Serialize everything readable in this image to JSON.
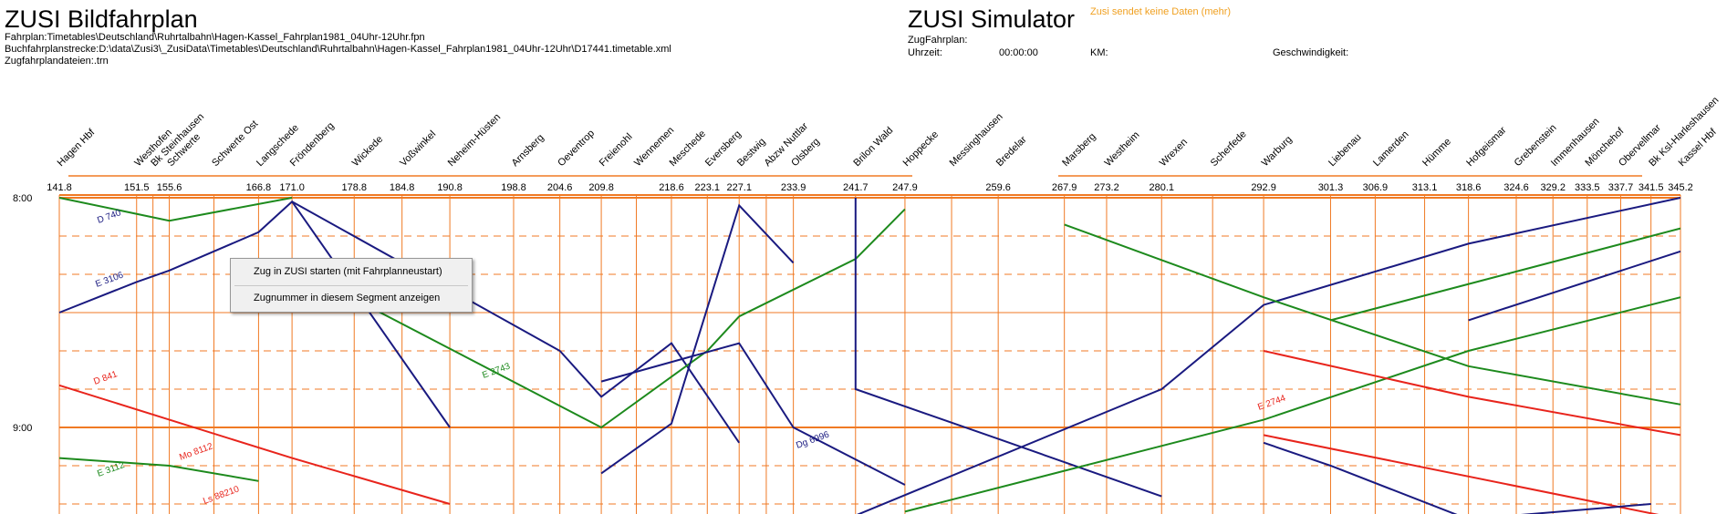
{
  "header": {
    "title": "ZUSI Bildfahrplan",
    "fahrplan_line": "Fahrplan:Timetables\\Deutschland\\Ruhrtalbahn\\Hagen-Kassel_Fahrplan1981_04Uhr-12Uhr.fpn",
    "buchfahrplan_line": "Buchfahrplanstrecke:D:\\data\\Zusi3\\_ZusiData\\Timetables\\Deutschland\\Ruhrtalbahn\\Hagen-Kassel_Fahrplan1981_04Uhr-12Uhr\\D17441.timetable.xml",
    "zugfahrplan_line": "Zugfahrplandateien:.trn"
  },
  "simulator": {
    "title": "ZUSI Simulator",
    "status": "Zusi sendet keine Daten (mehr)",
    "zugfahrplan_label": "ZugFahrplan:",
    "uhrzeit_label": "Uhrzeit:",
    "uhrzeit_value": "00:00:00",
    "km_label": "KM:",
    "geschwindigkeit_label": "Geschwindigkeit:"
  },
  "context_menu": {
    "item1": "Zug in ZUSI starten (mit Fahrplanneustart)",
    "item2": "Zugnummer in diesem Segment anzeigen"
  },
  "colors": {
    "grid_orange": "#f07a24",
    "train_blue": "#1a1a80",
    "train_green": "#1d8a1d",
    "train_red": "#e8241c",
    "status_orange": "#f0a020"
  },
  "chart_data": {
    "type": "line",
    "time_labels": [
      {
        "label": "8:00",
        "minutes": 0
      },
      {
        "label": "9:00",
        "minutes": 60
      }
    ],
    "stations": [
      {
        "name": "Hagen Hbf",
        "km": "141.8"
      },
      {
        "name": "Westhofen",
        "km": "151.5"
      },
      {
        "name": "Bk Steinhausen",
        "km": ""
      },
      {
        "name": "Schwerte",
        "km": "155.6"
      },
      {
        "name": "Schwerte Ost",
        "km": ""
      },
      {
        "name": "Langschede",
        "km": "166.8"
      },
      {
        "name": "Fröndenberg",
        "km": "171.0"
      },
      {
        "name": "Wickede",
        "km": "178.8"
      },
      {
        "name": "Voßwinkel",
        "km": "184.8"
      },
      {
        "name": "Neheim-Hüsten",
        "km": "190.8"
      },
      {
        "name": "Arnsberg",
        "km": "198.8"
      },
      {
        "name": "Oeventrop",
        "km": "204.6"
      },
      {
        "name": "Freienohl",
        "km": "209.8"
      },
      {
        "name": "Wennemen",
        "km": ""
      },
      {
        "name": "Meschede",
        "km": "218.6"
      },
      {
        "name": "Eversberg",
        "km": "223.1"
      },
      {
        "name": "Bestwig",
        "km": "227.1"
      },
      {
        "name": "Abzw Nuttlar",
        "km": ""
      },
      {
        "name": "Olsberg",
        "km": "233.9"
      },
      {
        "name": "Brilon Wald",
        "km": "241.7"
      },
      {
        "name": "Hoppecke",
        "km": "247.9"
      },
      {
        "name": "Messinghausen",
        "km": ""
      },
      {
        "name": "Bredelar",
        "km": "259.6"
      },
      {
        "name": "Marsberg",
        "km": "267.9"
      },
      {
        "name": "Westheim",
        "km": "273.2"
      },
      {
        "name": "Wrexen",
        "km": "280.1"
      },
      {
        "name": "Scherfede",
        "km": ""
      },
      {
        "name": "Warburg",
        "km": "292.9"
      },
      {
        "name": "Liebenau",
        "km": "301.3"
      },
      {
        "name": "Lamerden",
        "km": "306.9"
      },
      {
        "name": "Hümme",
        "km": "313.1"
      },
      {
        "name": "Hofgeismar",
        "km": "318.6"
      },
      {
        "name": "Grebenstein",
        "km": "324.6"
      },
      {
        "name": "Immenhausen",
        "km": "329.2"
      },
      {
        "name": "Mönchehof",
        "km": "333.5"
      },
      {
        "name": "Obervellmar",
        "km": "337.7"
      },
      {
        "name": "Bk Ksl-Harleshausen",
        "km": "341.5"
      },
      {
        "name": "Kassel Hbf",
        "km": "345.2"
      }
    ],
    "train_labels": [
      {
        "text": "D 740",
        "color": "blue"
      },
      {
        "text": "E 3106",
        "color": "blue"
      },
      {
        "text": "D 841",
        "color": "red"
      },
      {
        "text": "E 3112",
        "color": "green"
      },
      {
        "text": "Mo 8112",
        "color": "red"
      },
      {
        "text": "Ls 88210",
        "color": "red"
      },
      {
        "text": "E 2743",
        "color": "green"
      },
      {
        "text": "E 2744",
        "color": "red"
      },
      {
        "text": "Dg 6996",
        "color": "blue"
      }
    ],
    "series": [
      {
        "color": "blue",
        "points": [
          [
            141.8,
            30
          ],
          [
            151.5,
            22
          ],
          [
            155.6,
            19
          ],
          [
            166.8,
            9
          ],
          [
            171.0,
            1
          ],
          [
            190.8,
            60
          ]
        ]
      },
      {
        "color": "blue",
        "points": [
          [
            171.0,
            1
          ],
          [
            204.6,
            40
          ],
          [
            209.8,
            52
          ],
          [
            218.6,
            38
          ],
          [
            227.1,
            64
          ]
        ]
      },
      {
        "color": "green",
        "points": [
          [
            141.8,
            0
          ],
          [
            155.6,
            6
          ],
          [
            171.0,
            0
          ]
        ]
      },
      {
        "color": "green",
        "points": [
          [
            171.0,
            18
          ],
          [
            209.8,
            60
          ],
          [
            223.1,
            40
          ],
          [
            227.1,
            31
          ]
        ]
      },
      {
        "color": "blue",
        "points": [
          [
            209.8,
            72
          ],
          [
            218.6,
            59
          ],
          [
            227.1,
            2
          ],
          [
            233.9,
            17
          ]
        ]
      },
      {
        "color": "green",
        "points": [
          [
            227.1,
            31
          ],
          [
            241.7,
            16
          ],
          [
            247.9,
            3
          ]
        ]
      },
      {
        "color": "blue",
        "points": [
          [
            241.7,
            0
          ],
          [
            241.7,
            50
          ],
          [
            259.6,
            63
          ],
          [
            280.1,
            78
          ]
        ]
      },
      {
        "color": "blue",
        "points": [
          [
            241.7,
            83
          ],
          [
            280.1,
            50
          ],
          [
            292.9,
            28
          ],
          [
            318.6,
            12
          ],
          [
            345.2,
            0
          ]
        ]
      },
      {
        "color": "green",
        "points": [
          [
            267.9,
            7
          ],
          [
            292.9,
            26
          ],
          [
            318.6,
            44
          ],
          [
            345.2,
            54
          ]
        ]
      },
      {
        "color": "green",
        "points": [
          [
            247.9,
            82
          ],
          [
            292.9,
            58
          ],
          [
            318.6,
            40
          ],
          [
            345.2,
            26
          ]
        ]
      },
      {
        "color": "red",
        "points": [
          [
            292.9,
            40
          ],
          [
            318.6,
            52
          ],
          [
            345.2,
            62
          ]
        ]
      },
      {
        "color": "red",
        "points": [
          [
            292.9,
            62
          ],
          [
            345.2,
            84
          ]
        ]
      },
      {
        "color": "blue",
        "points": [
          [
            292.9,
            64
          ],
          [
            301.3,
            70
          ],
          [
            318.6,
            84
          ],
          [
            341.5,
            80
          ]
        ]
      },
      {
        "color": "red",
        "points": [
          [
            141.8,
            49
          ],
          [
            171.0,
            68
          ],
          [
            190.8,
            80
          ]
        ]
      },
      {
        "color": "green",
        "points": [
          [
            141.8,
            68
          ],
          [
            155.6,
            70
          ],
          [
            166.8,
            74
          ]
        ]
      },
      {
        "color": "blue",
        "points": [
          [
            209.8,
            48
          ],
          [
            227.1,
            38
          ],
          [
            233.9,
            60
          ],
          [
            247.9,
            75
          ]
        ]
      },
      {
        "color": "blue",
        "points": [
          [
            318.6,
            32
          ],
          [
            345.2,
            14
          ]
        ]
      },
      {
        "color": "green",
        "points": [
          [
            301.3,
            32
          ],
          [
            345.2,
            8
          ]
        ]
      }
    ]
  }
}
